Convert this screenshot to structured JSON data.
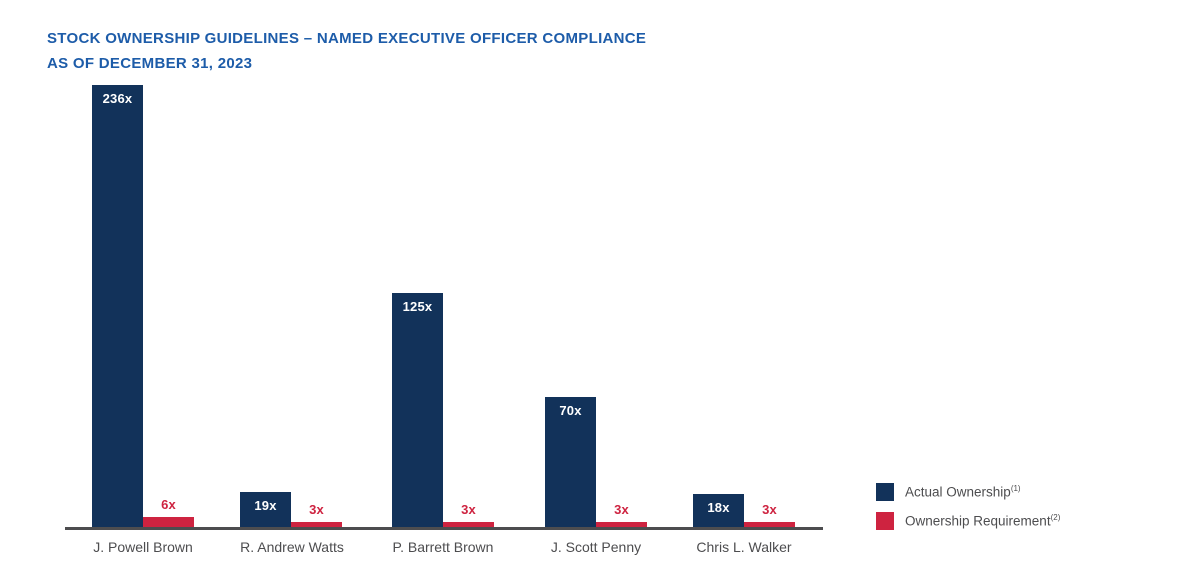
{
  "title": {
    "line1": "STOCK OWNERSHIP GUIDELINES – NAMED EXECUTIVE OFFICER COMPLIANCE",
    "line2": "AS OF DECEMBER 31, 2023"
  },
  "colors": {
    "title_blue": "#1D5CA9",
    "navy": "#12325A",
    "red": "#CE2340",
    "axis_gray": "#4D4D4F",
    "text_gray": "#4D4D4F"
  },
  "legend": [
    {
      "label": "Actual Ownership",
      "sup": "(1)",
      "series": 0
    },
    {
      "label": "Ownership Requirement",
      "sup": "(2)",
      "series": 1
    }
  ],
  "chart_data": {
    "type": "bar",
    "categories": [
      "J. Powell Brown",
      "R. Andrew Watts",
      "P. Barrett Brown",
      "J. Scott Penny",
      "Chris L. Walker"
    ],
    "series": [
      {
        "name": "Actual Ownership",
        "values": [
          236,
          19,
          125,
          70,
          18
        ],
        "labels": [
          "236x",
          "19x",
          "125x",
          "70x",
          "18x"
        ],
        "color": "#12325A"
      },
      {
        "name": "Ownership Requirement",
        "values": [
          6,
          3,
          3,
          3,
          3
        ],
        "labels": [
          "6x",
          "3x",
          "3x",
          "3x",
          "3x"
        ],
        "color": "#CE2340"
      }
    ],
    "ylim": [
      0,
      236
    ],
    "grid": false,
    "legend_position": "right",
    "value_suffix": "x"
  }
}
